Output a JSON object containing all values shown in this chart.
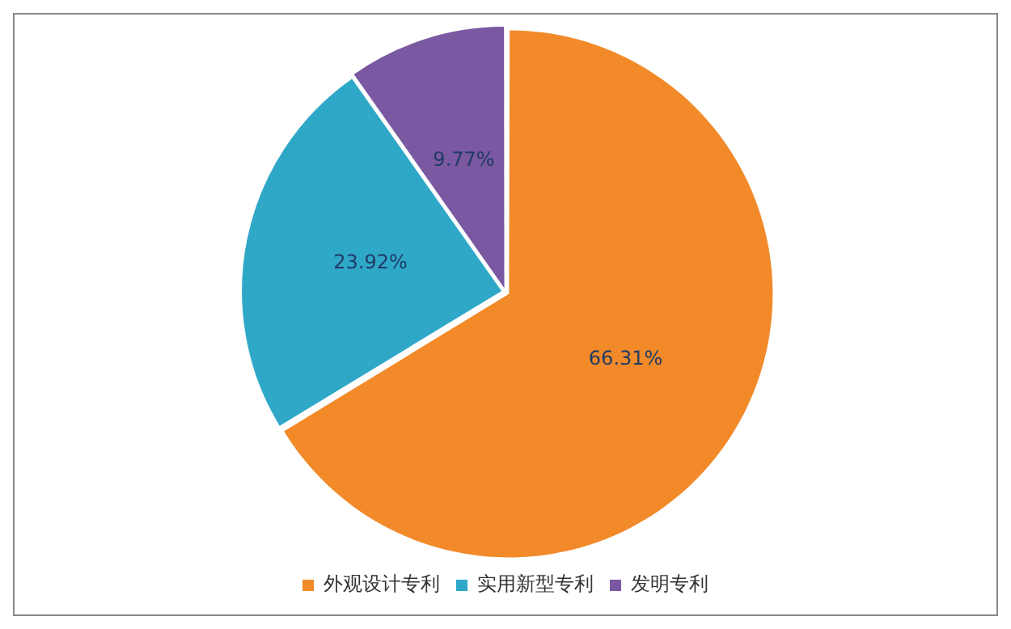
{
  "chart_data": {
    "type": "pie",
    "categories": [
      "外观设计专利",
      "实用新型专利",
      "发明专利"
    ],
    "values": [
      66.31,
      23.92,
      9.77
    ],
    "value_labels": [
      "66.31%",
      "23.92%",
      "9.77%"
    ],
    "colors": [
      "#f28a2a",
      "#2fa8c8",
      "#7a58a2"
    ],
    "legend": "bottom"
  }
}
